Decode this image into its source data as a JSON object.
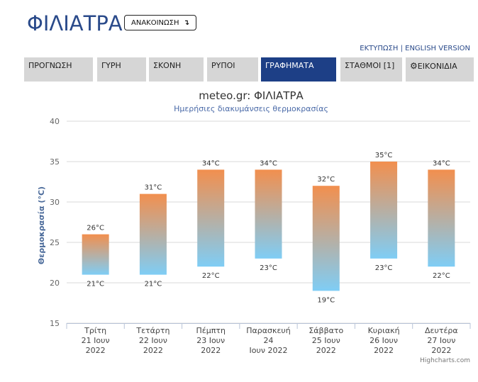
{
  "header": {
    "title": "ΦΙΛΙΑΤΡΑ",
    "announce_label": "ΑΝΑΚΟΙΝΩΣΗ",
    "announce_icon": "arrow-down-icon",
    "print_label": "ΕΚΤΥΠΩΣΗ",
    "separator": "|",
    "english_label": "ENGLISH VERSION"
  },
  "nav": {
    "tabs": [
      {
        "label": "ΠΡΟΓΝΩΣΗ"
      },
      {
        "label": "ΓΥΡΗ"
      },
      {
        "label": "ΣΚΟΝΗ"
      },
      {
        "label": "ΡΥΠΟΙ"
      },
      {
        "label": "ΓΡΑΦΗΜΑΤΑ"
      },
      {
        "label": "ΣΤΑΘΜΟΙ [1]"
      },
      {
        "label": "ΕΙΚΟΝΙΔΙΑ"
      }
    ],
    "active_index": 4,
    "gear_icon": "gear-icon"
  },
  "colors": {
    "brand": "#2a4a8a",
    "active_tab": "#1d3f86",
    "bar_top": "#f28f4e",
    "bar_bottom": "#7fcdf5"
  },
  "chart_data": {
    "type": "columnrange",
    "title": "meteo.gr: ΦΙΛΙΑΤΡΑ",
    "subtitle": "Ημερήσιες διακυμάνσεις θερμοκρασίας",
    "ylabel": "Θερμοκρασία (°C)",
    "ylim": [
      15,
      40
    ],
    "yticks": [
      15,
      20,
      25,
      30,
      35,
      40
    ],
    "grid": true,
    "unit": "°C",
    "categories": [
      [
        "Τρίτη",
        "21 Ιουν",
        "2022"
      ],
      [
        "Τετάρτη",
        "22 Ιουν",
        "2022"
      ],
      [
        "Πέμπτη",
        "23 Ιουν",
        "2022"
      ],
      [
        "Παρασκευή",
        "24",
        "Ιουν 2022"
      ],
      [
        "Σάββατο",
        "25 Ιουν",
        "2022"
      ],
      [
        "Κυριακή",
        "26 Ιουν",
        "2022"
      ],
      [
        "Δευτέρα",
        "27 Ιουν",
        "2022"
      ]
    ],
    "low": [
      21,
      21,
      22,
      23,
      19,
      23,
      22
    ],
    "high": [
      26,
      31,
      34,
      34,
      32,
      35,
      34
    ],
    "credits": "Highcharts.com"
  }
}
